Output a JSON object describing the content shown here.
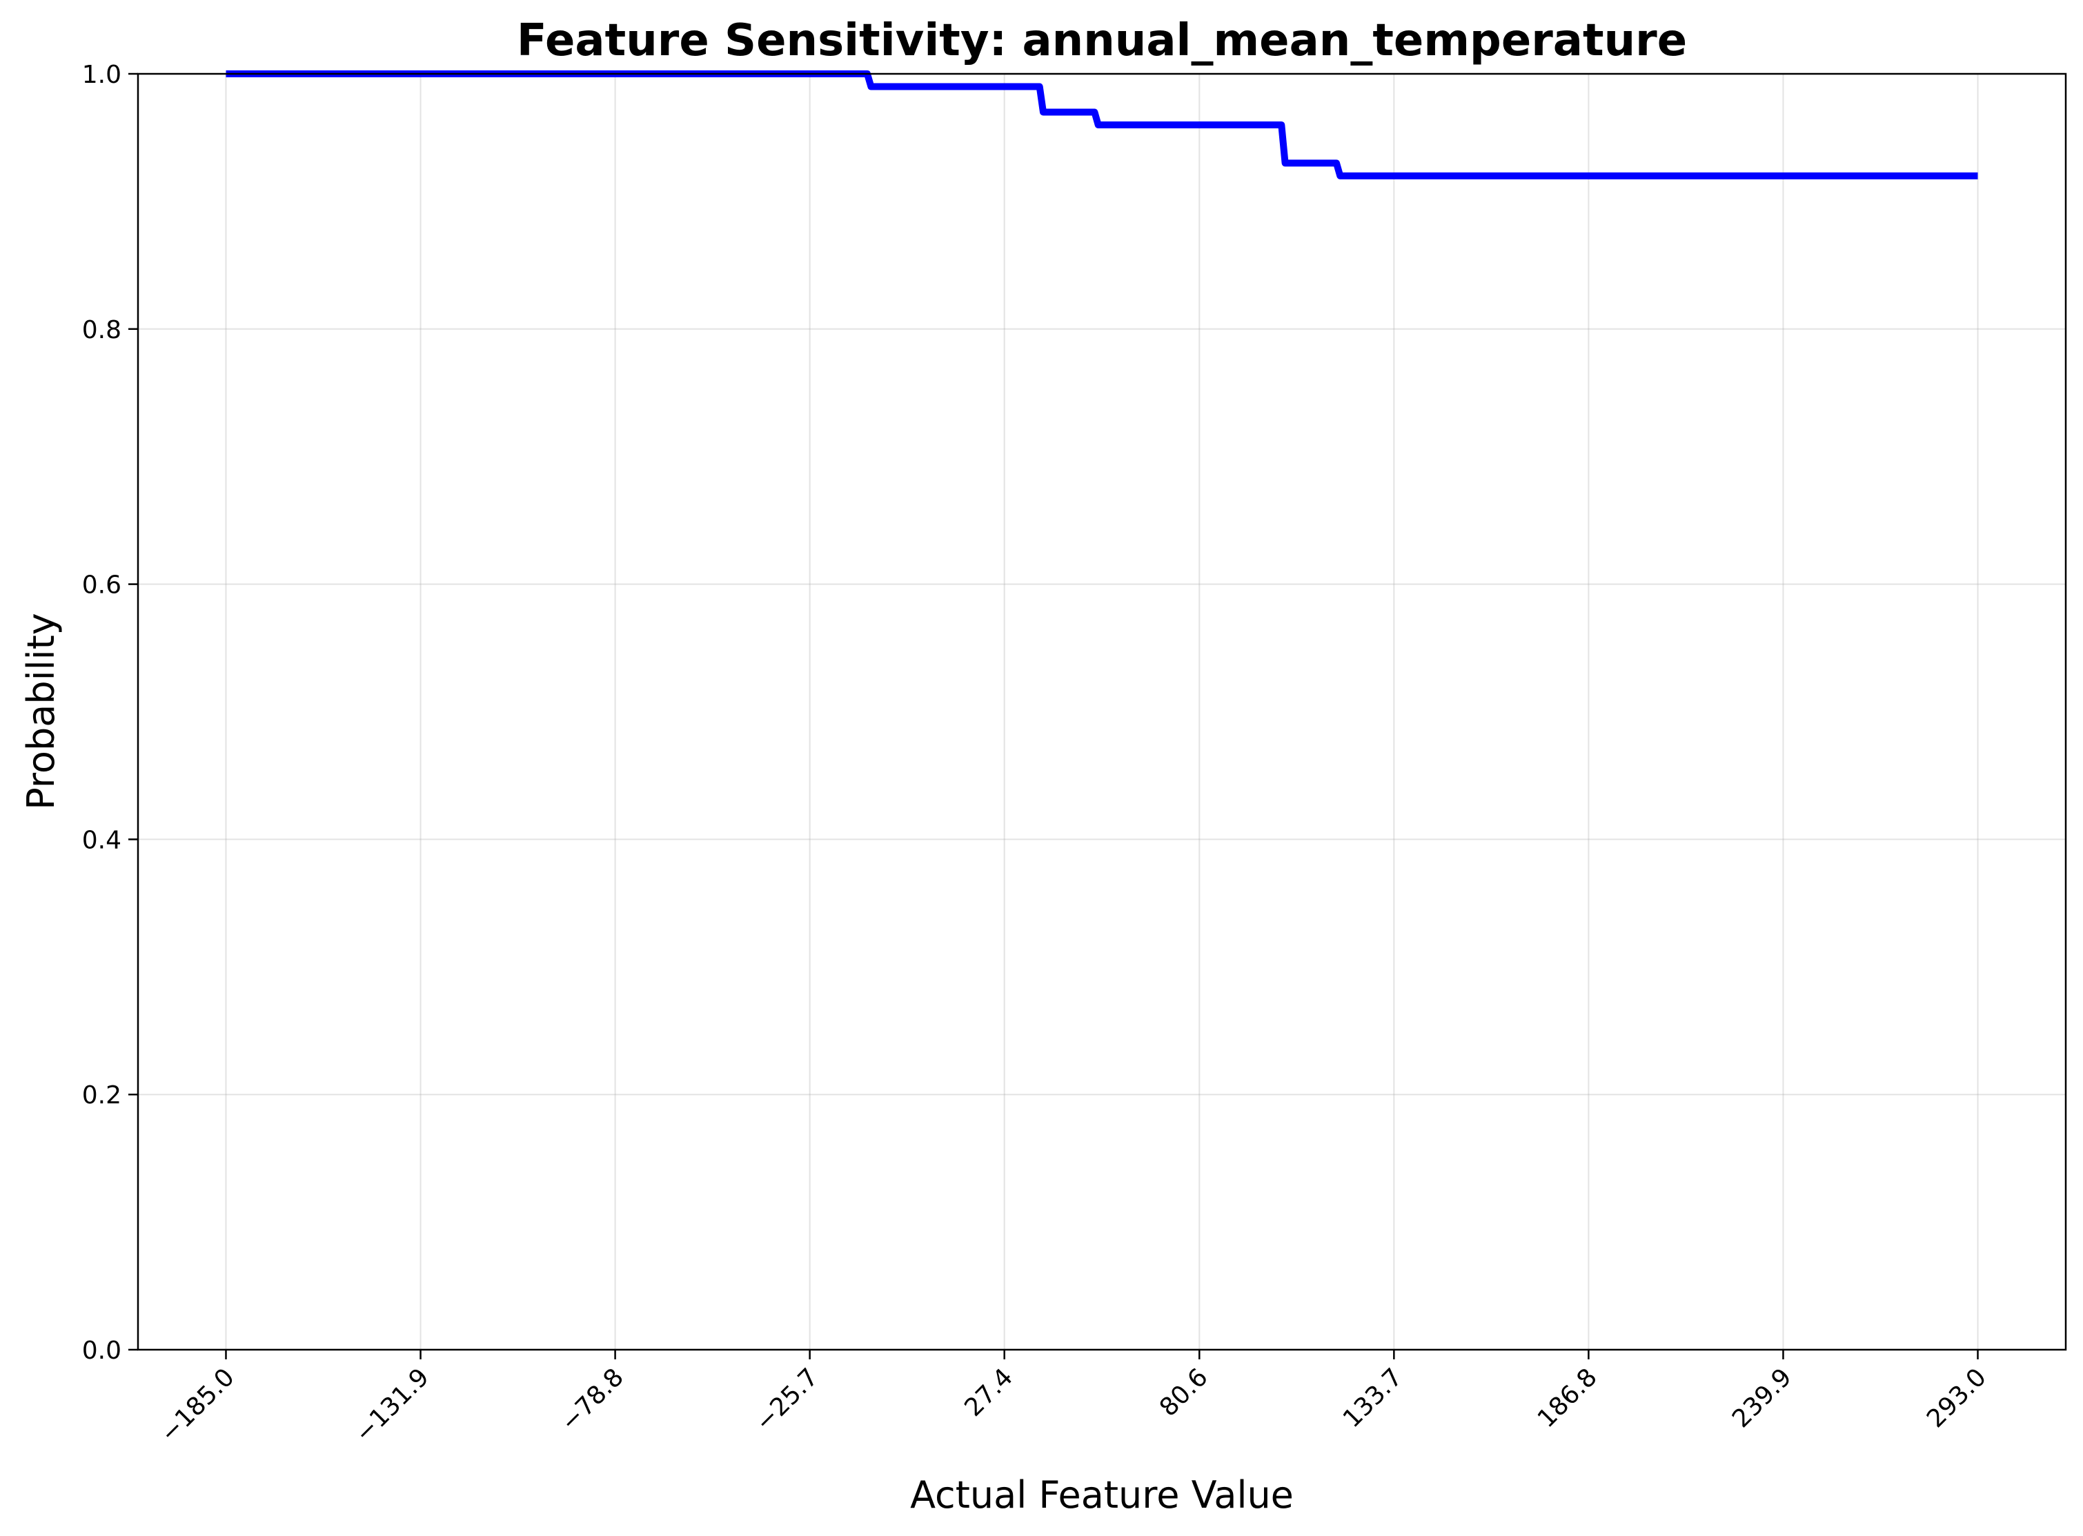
{
  "chart_data": {
    "type": "line",
    "title": "Feature Sensitivity: annual_mean_temperature",
    "xlabel": "Actual Feature Value",
    "ylabel": "Probability",
    "xlim": [
      -209,
      317
    ],
    "ylim": [
      0,
      1.0
    ],
    "grid": true,
    "x_ticks": [
      -185.0,
      -131.9,
      -78.8,
      -25.7,
      27.4,
      80.6,
      133.7,
      186.8,
      239.9,
      293.0
    ],
    "x_tick_labels": [
      "−185.0",
      "−131.9",
      "−78.8",
      "−25.7",
      "27.4",
      "80.6",
      "133.7",
      "186.8",
      "239.9",
      "293.0"
    ],
    "y_ticks": [
      0.0,
      0.2,
      0.4,
      0.6,
      0.8,
      1.0
    ],
    "y_tick_labels": [
      "0.0",
      "0.2",
      "0.4",
      "0.6",
      "0.8",
      "1.0"
    ],
    "series": [
      {
        "color": "#0000ff",
        "x": [
          -185,
          -10,
          -9,
          37,
          38,
          52,
          53,
          103,
          104,
          118,
          119,
          293
        ],
        "y": [
          1.0,
          1.0,
          0.99,
          0.99,
          0.97,
          0.97,
          0.96,
          0.96,
          0.93,
          0.93,
          0.92,
          0.92
        ]
      }
    ]
  }
}
